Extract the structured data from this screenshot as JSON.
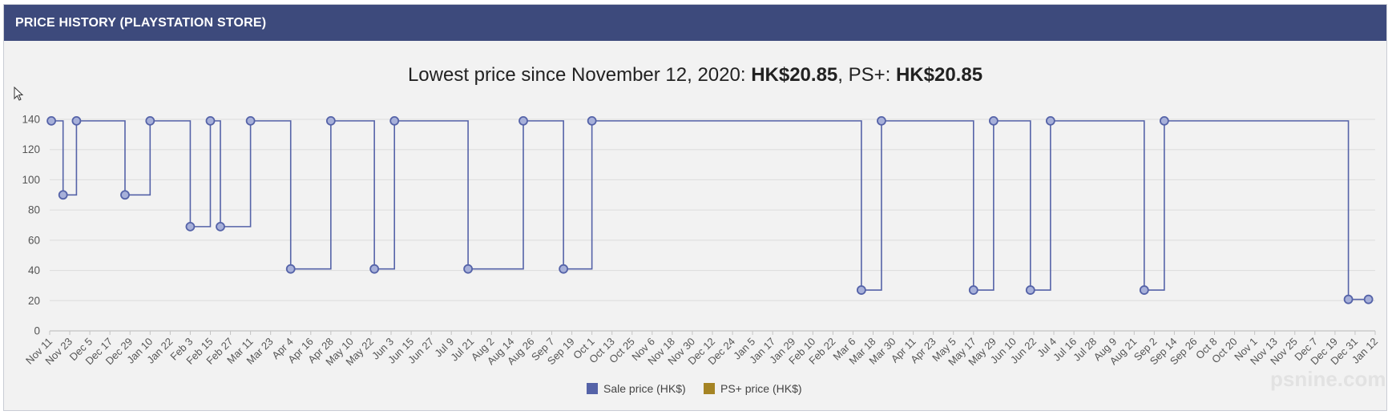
{
  "header": {
    "title": "PRICE HISTORY (PLAYSTATION STORE)"
  },
  "summary": {
    "prefix": "Lowest price since November 12, 2020: ",
    "lowest_price": "HK$20.85",
    "ps_plus_prefix": ", PS+: ",
    "ps_plus_price": "HK$20.85"
  },
  "colors": {
    "header_bg": "#3d4a7c",
    "sale": "#5563a8",
    "ps_plus": "#a58424"
  },
  "watermark": "psnine.com",
  "chart_data": {
    "type": "line",
    "step": true,
    "ylim": [
      0,
      140
    ],
    "yticks": [
      0,
      20,
      40,
      60,
      80,
      100,
      120,
      140
    ],
    "grid": true,
    "legend_position": "bottom",
    "x_tick_labels": [
      "Nov 11",
      "Nov 23",
      "Dec 5",
      "Dec 17",
      "Dec 29",
      "Jan 10",
      "Jan 22",
      "Feb 3",
      "Feb 15",
      "Feb 27",
      "Mar 11",
      "Mar 23",
      "Apr 4",
      "Apr 16",
      "Apr 28",
      "May 10",
      "May 22",
      "Jun 3",
      "Jun 15",
      "Jun 27",
      "Jul 9",
      "Jul 21",
      "Aug 2",
      "Aug 14",
      "Aug 26",
      "Sep 7",
      "Sep 19",
      "Oct 1",
      "Oct 13",
      "Oct 25",
      "Nov 6",
      "Nov 18",
      "Nov 30",
      "Dec 12",
      "Dec 24",
      "Jan 5",
      "Jan 17",
      "Jan 29",
      "Feb 10",
      "Feb 22",
      "Mar 6",
      "Mar 18",
      "Mar 30",
      "Apr 11",
      "Apr 23",
      "May 5",
      "May 17",
      "May 29",
      "Jun 10",
      "Jun 22",
      "Jul 4",
      "Jul 16",
      "Jul 28",
      "Aug 9",
      "Aug 21",
      "Sep 2",
      "Sep 14",
      "Sep 26",
      "Oct 8",
      "Oct 20",
      "Nov 1",
      "Nov 13",
      "Nov 25",
      "Dec 7",
      "Dec 19",
      "Dec 31",
      "Jan 12"
    ],
    "series": [
      {
        "name": "Sale price (HK$)",
        "color": "#5563a8",
        "points": [
          {
            "x": "Nov 12",
            "y": 139
          },
          {
            "x": "Nov 19",
            "y": 90
          },
          {
            "x": "Nov 27",
            "y": 139
          },
          {
            "x": "Dec 26",
            "y": 90
          },
          {
            "x": "Jan 10",
            "y": 139
          },
          {
            "x": "Feb 3",
            "y": 69
          },
          {
            "x": "Feb 15",
            "y": 139
          },
          {
            "x": "Feb 21",
            "y": 69
          },
          {
            "x": "Mar 11",
            "y": 139
          },
          {
            "x": "Apr 4",
            "y": 41
          },
          {
            "x": "Apr 28",
            "y": 139
          },
          {
            "x": "May 24",
            "y": 41
          },
          {
            "x": "Jun 5",
            "y": 139
          },
          {
            "x": "Jul 19",
            "y": 41
          },
          {
            "x": "Aug 21",
            "y": 139
          },
          {
            "x": "Sep 14",
            "y": 41
          },
          {
            "x": "Oct 1",
            "y": 139
          },
          {
            "x": "Mar 11",
            "y": 27
          },
          {
            "x": "Mar 23",
            "y": 139
          },
          {
            "x": "May 17",
            "y": 27
          },
          {
            "x": "May 29",
            "y": 139
          },
          {
            "x": "Jun 20",
            "y": 27
          },
          {
            "x": "Jul 2",
            "y": 139
          },
          {
            "x": "Aug 27",
            "y": 27
          },
          {
            "x": "Sep 8",
            "y": 139
          },
          {
            "x": "Dec 27",
            "y": 20.85
          },
          {
            "x": "Jan 8",
            "y": 20.85
          }
        ]
      },
      {
        "name": "PS+ price (HK$)",
        "color": "#a58424",
        "points": []
      }
    ]
  }
}
